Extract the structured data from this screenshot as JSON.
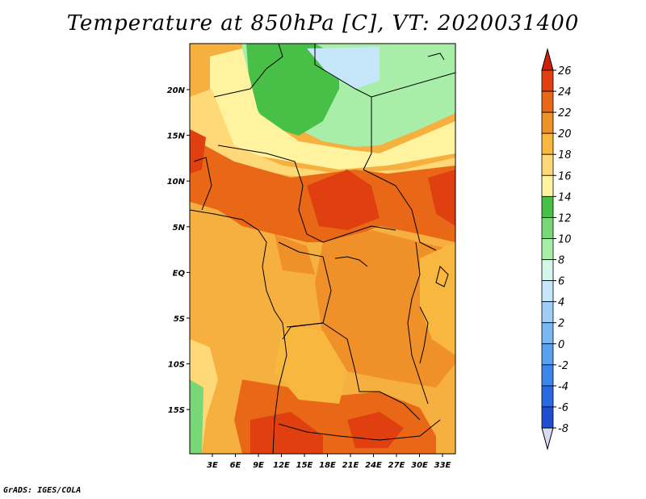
{
  "title": "Temperature at 850hPa [C], VT: 2020031400",
  "credit": "GrADS: IGES/COLA",
  "map": {
    "lon_ticks": [
      "3E",
      "6E",
      "9E",
      "12E",
      "15E",
      "18E",
      "21E",
      "24E",
      "27E",
      "30E",
      "33E"
    ],
    "lat_ticks": [
      "20N",
      "15N",
      "10N",
      "5N",
      "EQ",
      "5S",
      "10S",
      "15S"
    ],
    "lon_range": [
      0,
      35
    ],
    "lat_range": [
      -20,
      25
    ]
  },
  "colorbar": {
    "levels": [
      "26",
      "24",
      "22",
      "20",
      "18",
      "16",
      "14",
      "12",
      "10",
      "8",
      "6",
      "4",
      "2",
      "0",
      "-2",
      "-4",
      "-6",
      "-8"
    ],
    "colors": [
      "#d9d9f2",
      "#0b0b6e",
      "#1432a8",
      "#1f4fd0",
      "#2a6ae0",
      "#3a86ea",
      "#5aa0f0",
      "#7ab8f4",
      "#9fcdf6",
      "#c6e6fa",
      "#d5f5e8",
      "#a8eea8",
      "#78d878",
      "#48c048",
      "#fff3a0",
      "#ffd878",
      "#f8b840",
      "#f09028",
      "#e86818",
      "#e04010",
      "#d02008"
    ]
  }
}
